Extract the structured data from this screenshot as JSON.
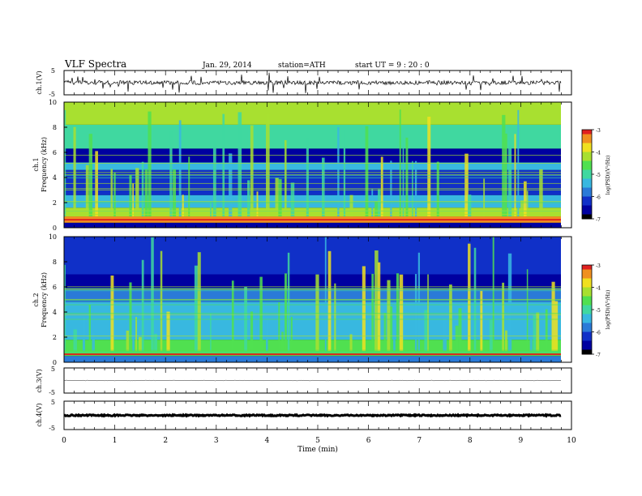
{
  "header": {
    "title": "VLF  Spectra",
    "date": "Jan. 29, 2014",
    "station": "station=ATH",
    "start": "start  UT  =   9  : 20 : 0"
  },
  "chart_data": [
    {
      "type": "line",
      "name": "ch1-waveform",
      "ylabel": "ch.1(V)",
      "ylim": [
        -5,
        5
      ],
      "yticks": [
        "5",
        "-5"
      ],
      "xlim": [
        0,
        10
      ],
      "description_level": "noisy waveform near 0 V with spikes"
    },
    {
      "type": "heatmap",
      "name": "ch1-spectrogram",
      "ylabel": "ch.1\nFrequency  (kHz)",
      "ylabel_top": "ch.1",
      "ylabel_bottom": "Frequency  (kHz)",
      "ylim": [
        0,
        10
      ],
      "yticks": [
        "0",
        "2",
        "4",
        "6",
        "8",
        "10"
      ],
      "xlim": [
        0,
        9.8
      ],
      "colorbar": {
        "label": "log(PSD)(V²/Hz)",
        "range": [
          -7,
          -3
        ],
        "ticks": [
          "-3",
          "-4",
          "-5",
          "-6",
          "-7"
        ]
      },
      "bands": [
        {
          "from": 0,
          "to": 0.4,
          "level": -6.5
        },
        {
          "from": 0.4,
          "to": 0.9,
          "level": -3.3
        },
        {
          "from": 0.9,
          "to": 1.6,
          "level": -4.3
        },
        {
          "from": 1.6,
          "to": 2.6,
          "level": -5.6
        },
        {
          "from": 2.6,
          "to": 4.6,
          "level": -6.3
        },
        {
          "from": 4.6,
          "to": 5.2,
          "level": -5.4
        },
        {
          "from": 5.2,
          "to": 6.3,
          "level": -6.4
        },
        {
          "from": 6.3,
          "to": 8.2,
          "level": -5.0
        },
        {
          "from": 8.2,
          "to": 10,
          "level": -4.3
        }
      ]
    },
    {
      "type": "heatmap",
      "name": "ch2-spectrogram",
      "ylabel": "ch.2\nFrequency  (kHz)",
      "ylabel_top": "ch.2",
      "ylabel_bottom": "Frequency  (kHz)",
      "ylim": [
        0,
        10
      ],
      "yticks": [
        "0",
        "2",
        "4",
        "6",
        "8",
        "10"
      ],
      "xlim": [
        0,
        9.8
      ],
      "colorbar": {
        "label": "log(PSD)(V²/Hz)",
        "range": [
          -7,
          -3
        ],
        "ticks": [
          "-3",
          "-4",
          "-5",
          "-6",
          "-7"
        ]
      },
      "bands": [
        {
          "from": 0,
          "to": 0.5,
          "level": -5.8
        },
        {
          "from": 0.5,
          "to": 1.8,
          "level": -4.7
        },
        {
          "from": 1.8,
          "to": 3.0,
          "level": -5.3
        },
        {
          "from": 3.0,
          "to": 4.8,
          "level": -5.6
        },
        {
          "from": 4.8,
          "to": 5.8,
          "level": -5.9
        },
        {
          "from": 5.8,
          "to": 7.0,
          "level": -6.5
        },
        {
          "from": 7.0,
          "to": 10,
          "level": -6.3
        }
      ]
    },
    {
      "type": "line",
      "name": "ch3-waveform",
      "ylabel": "ch.3(V)",
      "ylim": [
        -5,
        5
      ],
      "yticks": [
        "5",
        "-5"
      ],
      "level": 0
    },
    {
      "type": "line",
      "name": "ch4-waveform",
      "ylabel": "ch.4(V)",
      "ylim": [
        -5,
        5
      ],
      "yticks": [
        "5",
        "-5"
      ],
      "level": 0
    }
  ],
  "x_axis": {
    "label": "Time  (min)",
    "ticks": [
      "0",
      "1",
      "2",
      "3",
      "4",
      "5",
      "6",
      "7",
      "8",
      "9",
      "10"
    ]
  },
  "colors": {
    "colormap": [
      "#000000",
      "#0000a0",
      "#1030c8",
      "#2a7ad8",
      "#38b8e0",
      "#40d8a0",
      "#50e050",
      "#a8e030",
      "#f0e020",
      "#f09020",
      "#e02020",
      "#ffffff"
    ]
  }
}
